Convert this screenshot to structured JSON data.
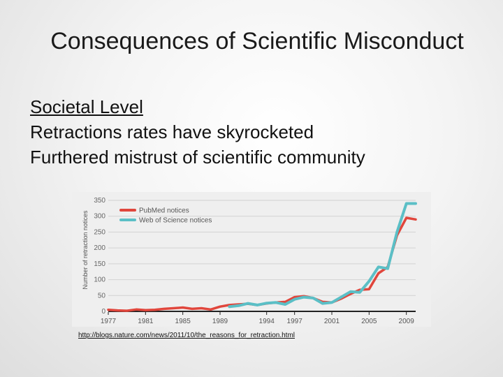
{
  "slide": {
    "title": "Consequences of Scientific Misconduct",
    "bullets": [
      "Societal Level",
      "Retractions rates have skyrocketed",
      "Furthered mistrust of scientific community"
    ],
    "source_link": "http://blogs.nature.com/news/2011/10/the_reasons_for_retraction.html"
  },
  "chart_data": {
    "type": "line",
    "ylabel": "Number of retraction notices",
    "xlabel": "",
    "ylim": [
      0,
      350
    ],
    "xlim": [
      1977,
      2010
    ],
    "yticks": [
      0,
      50,
      100,
      150,
      200,
      250,
      300,
      350
    ],
    "xticks": [
      1977,
      1981,
      1985,
      1989,
      1994,
      1997,
      2001,
      2005,
      2009
    ],
    "legend_position": "top-left",
    "series": [
      {
        "name": "PubMed notices",
        "color": "#e0463c",
        "x": [
          1977,
          1978,
          1979,
          1980,
          1981,
          1982,
          1983,
          1984,
          1985,
          1986,
          1987,
          1988,
          1989,
          1990,
          1991,
          1992,
          1993,
          1994,
          1995,
          1996,
          1997,
          1998,
          1999,
          2000,
          2001,
          2002,
          2003,
          2004,
          2005,
          2006,
          2007,
          2008,
          2009,
          2010
        ],
        "values": [
          5,
          3,
          2,
          6,
          4,
          5,
          8,
          10,
          12,
          8,
          10,
          6,
          15,
          20,
          22,
          24,
          20,
          25,
          28,
          30,
          45,
          48,
          42,
          30,
          28,
          40,
          55,
          68,
          70,
          120,
          140,
          240,
          295,
          290
        ]
      },
      {
        "name": "Web of Science notices",
        "color": "#5bbfc6",
        "x": [
          1990,
          1991,
          1992,
          1993,
          1994,
          1995,
          1996,
          1997,
          1998,
          1999,
          2000,
          2001,
          2002,
          2003,
          2004,
          2005,
          2006,
          2007,
          2008,
          2009,
          2010
        ],
        "values": [
          15,
          18,
          25,
          20,
          26,
          28,
          22,
          38,
          45,
          42,
          25,
          28,
          45,
          62,
          60,
          95,
          140,
          135,
          250,
          340,
          340
        ]
      }
    ]
  }
}
